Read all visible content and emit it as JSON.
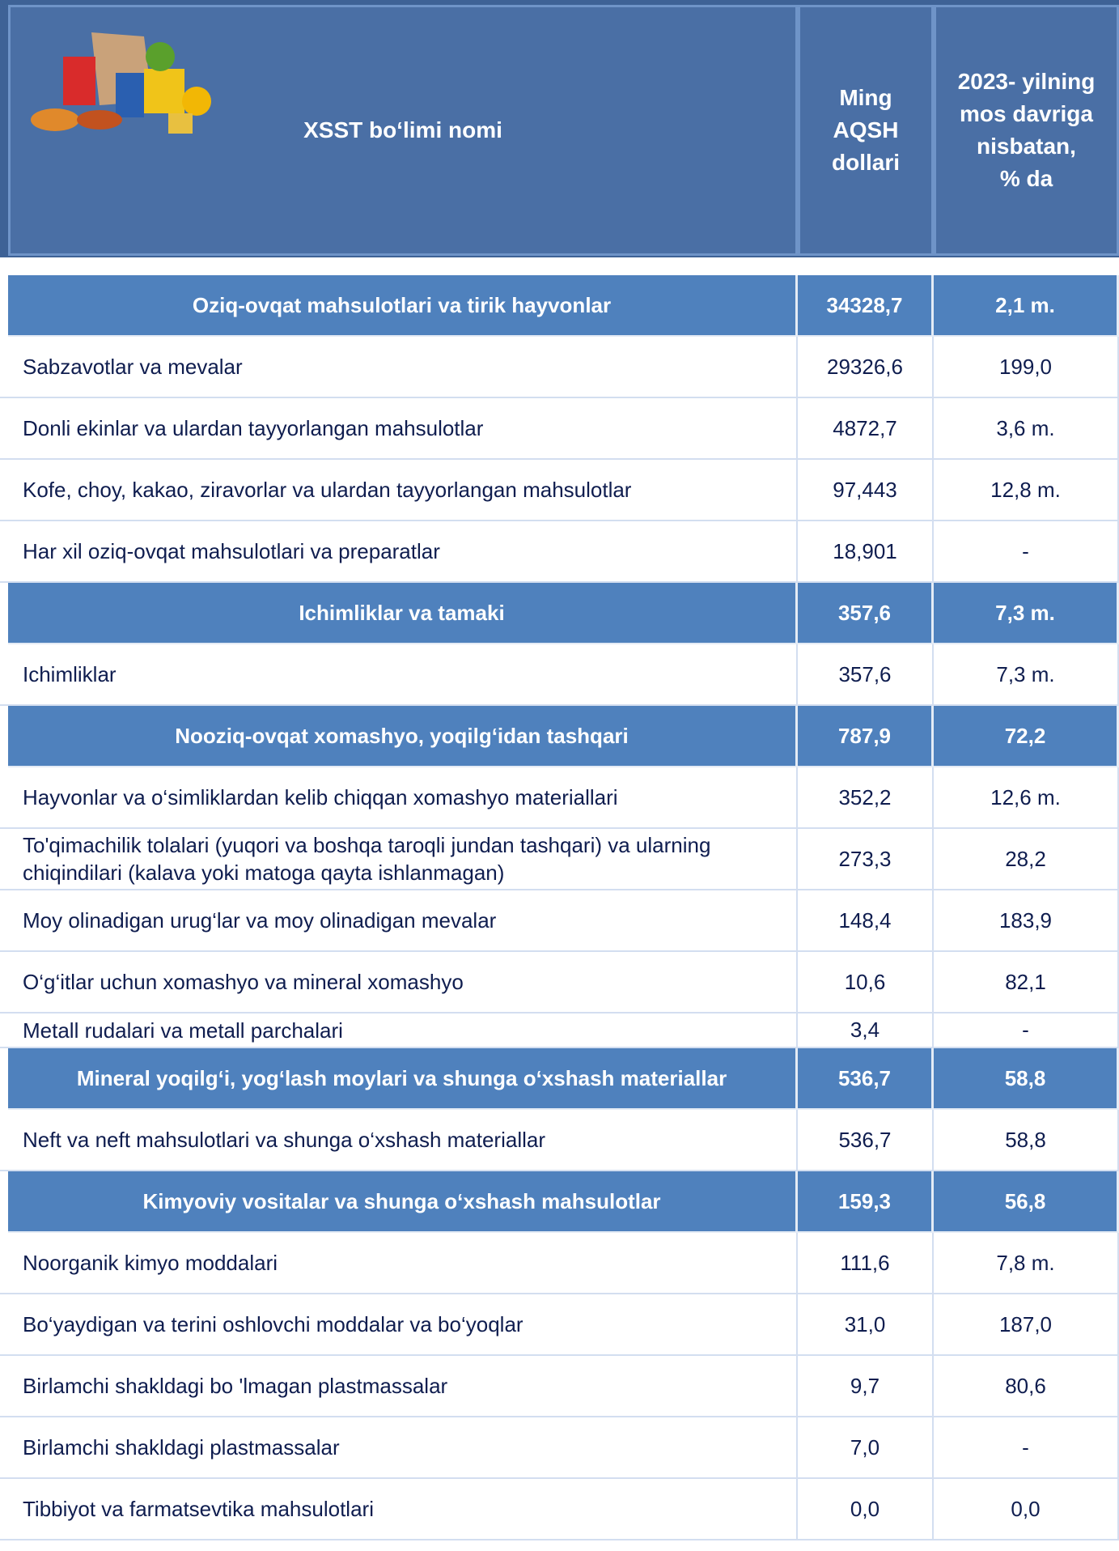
{
  "header": {
    "title": "XSST bo‘limi nomi",
    "col1": "Ming\nAQSH\ndollari",
    "col2": "2023- yilning\nmos davriga\nnisbatan,\n % da"
  },
  "sections": [
    {
      "name": "Oziq-ovqat mahsulotlari va tirik hayvonlar",
      "value": "34328,7",
      "change": "2,1 m.",
      "items": [
        {
          "name": "Sabzavotlar va mevalar",
          "value": "29326,6",
          "change": "199,0"
        },
        {
          "name": "Donli ekinlar va ulardan  tayyorlangan mahsulotlar",
          "value": "4872,7",
          "change": "3,6 m."
        },
        {
          "name": "Kofe, choy, kakao, ziravorlar va ulardan  tayyorlangan mahsulotlar",
          "value": "97,443",
          "change": "12,8 m."
        },
        {
          "name": "Har xil oziq-ovqat mahsulotlari va preparatlar",
          "value": "18,901",
          "change": "-"
        }
      ]
    },
    {
      "name": "Ichimliklar va tamaki",
      "value": "357,6",
      "change": "7,3 m.",
      "items": [
        {
          "name": "Ichimliklar",
          "value": "357,6",
          "change": "7,3 m."
        }
      ]
    },
    {
      "name": "Nooziq-ovqat xomashyo, yoqilg‘idan tashqari",
      "value": "787,9",
      "change": "72,2",
      "items": [
        {
          "name": "Hayvonlar va o‘simliklardan kelib chiqqan xomashyo materiallari",
          "value": "352,2",
          "change": "12,6 m."
        },
        {
          "name": "To'qimachilik tolalari (yuqori va boshqa taroqli jundan tashqari) va ularning chiqindilari (kalava yoki matoga qayta ishlanmagan)",
          "value": "273,3",
          "change": "28,2"
        },
        {
          "name": "Moy olinadigan urug‘lar va moy olinadigan mevalar",
          "value": "148,4",
          "change": "183,9"
        },
        {
          "name": "O‘g‘itlar uchun xomashyo va mineral xomashyo",
          "value": "10,6",
          "change": "82,1"
        },
        {
          "name": "Metall rudalari va metall parchalari",
          "value": "3,4",
          "change": "-"
        }
      ]
    },
    {
      "name": "Mineral yoqilg‘i, yog‘lash moylari va shunga o‘xshash materiallar",
      "value": "536,7",
      "change": "58,8",
      "items": [
        {
          "name": "Neft va neft mahsulotlari va shunga o‘xshash materiallar",
          "value": "536,7",
          "change": "58,8"
        }
      ]
    },
    {
      "name": "Kimyoviy vositalar va shunga o‘xshash mahsulotlar",
      "value": "159,3",
      "change": "56,8",
      "items": [
        {
          "name": "Noorganik kimyo moddalari",
          "value": "111,6",
          "change": "7,8 m."
        },
        {
          "name": "Bo‘yaydigan va terini oshlovchi moddalar va bo‘yoqlar",
          "value": "31,0",
          "change": "187,0"
        },
        {
          "name": "Birlamchi shakldagi bo 'lmagan plastmassalar",
          "value": "9,7",
          "change": "80,6"
        },
        {
          "name": "Birlamchi shakldagi plastmassalar",
          "value": "7,0",
          "change": "-"
        },
        {
          "name": "Tibbiyot va farmatsevtika mahsulotlari",
          "value": "0,0",
          "change": "0,0"
        }
      ]
    }
  ]
}
